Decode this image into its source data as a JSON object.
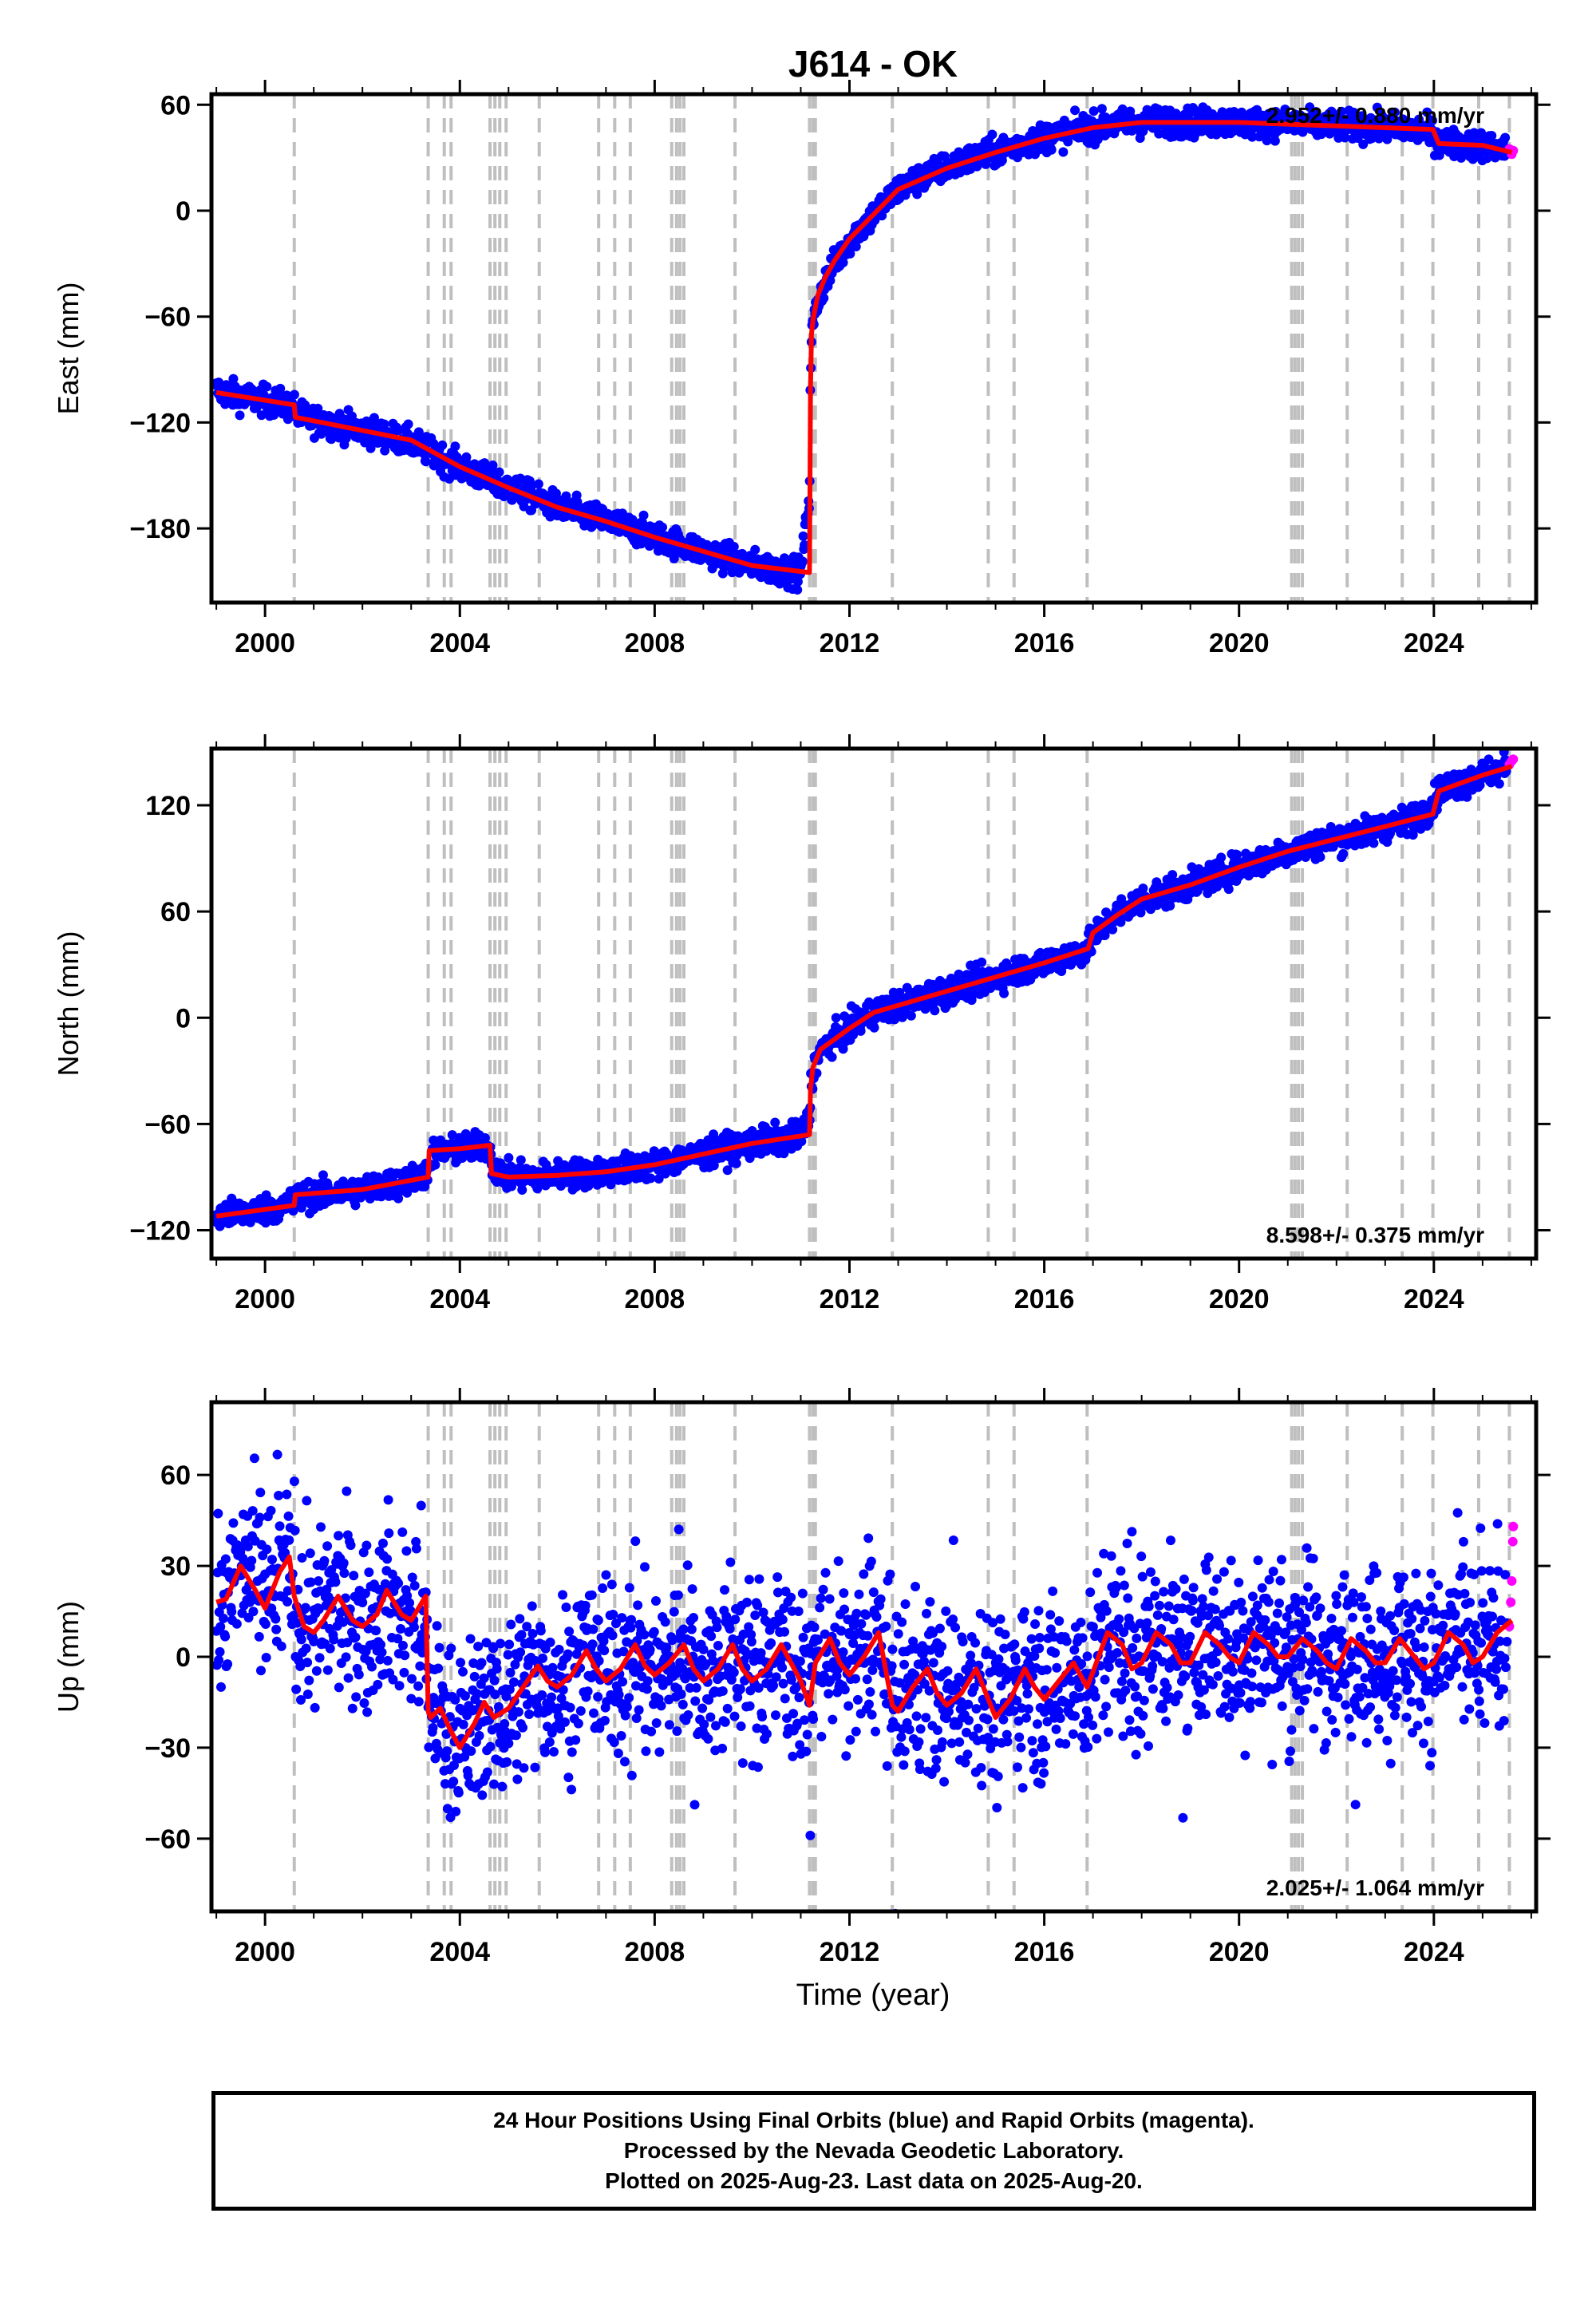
{
  "colors": {
    "final_orbits": "#0000ff",
    "rapid_orbits": "#ff00ff",
    "model": "#ff0000",
    "event_lines": "#bfbfbf",
    "frame": "#000000"
  },
  "footer": {
    "line1": "24 Hour Positions Using Final Orbits (blue) and Rapid Orbits (magenta).",
    "line2": "Processed by the Nevada Geodetic Laboratory.",
    "line3": "Plotted on 2025-Aug-23. Last data on 2025-Aug-20."
  },
  "chart_data": {
    "type": "scatter",
    "title": "J614 - OK",
    "xlabel": "Time (year)",
    "x_ticks": [
      "2000",
      "2004",
      "2008",
      "2012",
      "2016",
      "2020",
      "2024"
    ],
    "x_tick_values": [
      2000,
      2004,
      2008,
      2012,
      2016,
      2020,
      2024
    ],
    "xlim": [
      1998.9,
      2026.1
    ],
    "event_years": [
      2000.6,
      2003.35,
      2003.68,
      2003.82,
      2004.62,
      2004.72,
      2004.82,
      2004.95,
      2005.63,
      2006.85,
      2007.18,
      2007.5,
      2008.35,
      2008.45,
      2008.52,
      2008.6,
      2009.65,
      2011.18,
      2011.25,
      2011.3,
      2012.88,
      2014.85,
      2015.38,
      2016.88,
      2021.08,
      2021.15,
      2021.22,
      2021.3,
      2022.22,
      2023.35,
      2023.98,
      2024.92,
      2025.55
    ],
    "panels": [
      {
        "name": "East",
        "ylabel": "East (mm)",
        "y_ticks": [
          "60",
          "0",
          "−60",
          "−120",
          "−180"
        ],
        "y_tick_values": [
          60,
          0,
          -60,
          -120,
          -180
        ],
        "ylim": [
          -222,
          66
        ],
        "rate_text": "2.952+/- 0.880 mm/yr",
        "rate_position": "top-right",
        "model": {
          "x": [
            1999.0,
            2000.6,
            2000.62,
            2003.0,
            2004.0,
            2005.0,
            2006.0,
            2007.0,
            2008.0,
            2009.0,
            2010.0,
            2011.18,
            2011.2,
            2011.22,
            2011.25,
            2011.35,
            2011.5,
            2011.7,
            2012.0,
            2012.5,
            2013.0,
            2014.0,
            2015.0,
            2016.0,
            2017.0,
            2018.0,
            2019.0,
            2020.0,
            2021.0,
            2022.0,
            2023.0,
            2023.98,
            2024.1,
            2025.0,
            2025.6
          ],
          "y": [
            -103,
            -110,
            -117,
            -130,
            -145,
            -157,
            -168,
            -176,
            -185,
            -193,
            -201,
            -205,
            -100,
            -70,
            -62,
            -48,
            -38,
            -28,
            -16,
            -2,
            12,
            24,
            33,
            41,
            47,
            50,
            50,
            50,
            49,
            48,
            47,
            46,
            38,
            37,
            33
          ]
        },
        "final_points": {
          "x": [
            1999.0,
            1999.5,
            2000.0,
            2000.5,
            2001.0,
            2001.5,
            2002.0,
            2002.5,
            2003.0,
            2003.5,
            2004.0,
            2004.5,
            2005.0,
            2005.5,
            2006.0,
            2006.5,
            2007.0,
            2007.5,
            2008.0,
            2008.5,
            2009.0,
            2009.5,
            2010.0,
            2010.5,
            2011.0,
            2011.2,
            2011.3,
            2011.5,
            2012.0,
            2012.5,
            2013.0,
            2013.5,
            2014.0,
            2014.5,
            2015.0,
            2015.5,
            2016.0,
            2016.5,
            2017.0,
            2017.5,
            2018.0,
            2018.5,
            2019.0,
            2019.5,
            2020.0,
            2020.5,
            2021.0,
            2021.5,
            2022.0,
            2022.5,
            2023.0,
            2023.5,
            2024.0,
            2024.5,
            2025.0,
            2025.5
          ],
          "y": [
            -100,
            -106,
            -108,
            -112,
            -118,
            -121,
            -124,
            -128,
            -133,
            -140,
            -145,
            -152,
            -157,
            -162,
            -167,
            -172,
            -175,
            -180,
            -184,
            -188,
            -193,
            -197,
            -200,
            -204,
            -206,
            -80,
            -62,
            -43,
            -18,
            -3,
            12,
            20,
            26,
            30,
            34,
            38,
            42,
            45,
            48,
            50,
            50,
            51,
            50,
            51,
            50,
            49,
            50,
            49,
            49,
            48,
            47,
            47,
            40,
            38,
            37,
            34
          ],
          "spread": 4
        },
        "rapid_points": {
          "x": [
            2025.55,
            2025.6,
            2025.63
          ],
          "y": [
            35,
            32,
            34
          ]
        }
      },
      {
        "name": "North",
        "ylabel": "North (mm)",
        "y_ticks": [
          "120",
          "60",
          "0",
          "−60",
          "−120"
        ],
        "y_tick_values": [
          120,
          60,
          0,
          -60,
          -120
        ],
        "ylim": [
          -136,
          152
        ],
        "rate_text": "8.598+/- 0.375 mm/yr",
        "rate_position": "bottom-right",
        "model": {
          "x": [
            1999.0,
            2000.6,
            2000.62,
            2002.0,
            2003.35,
            2003.37,
            2004.0,
            2004.62,
            2004.65,
            2005.0,
            2006.0,
            2007.0,
            2008.0,
            2009.0,
            2010.0,
            2011.18,
            2011.2,
            2011.25,
            2011.4,
            2011.7,
            2012.0,
            2012.5,
            2013.0,
            2014.0,
            2015.0,
            2016.0,
            2016.9,
            2017.0,
            2017.5,
            2018.0,
            2019.0,
            2020.0,
            2021.0,
            2022.0,
            2023.0,
            2023.98,
            2024.1,
            2025.0,
            2025.6
          ],
          "y": [
            -112,
            -106,
            -100,
            -97,
            -90,
            -75,
            -74,
            -72,
            -88,
            -90,
            -89,
            -87,
            -83,
            -77,
            -71,
            -66,
            -40,
            -28,
            -18,
            -12,
            -6,
            3,
            7,
            15,
            23,
            31,
            39,
            48,
            58,
            67,
            75,
            85,
            94,
            101,
            108,
            115,
            128,
            137,
            142
          ],
          "spread": 0
        },
        "final_points": {
          "x": [
            1999.0,
            1999.5,
            2000.0,
            2000.5,
            2001.0,
            2001.5,
            2002.0,
            2002.5,
            2003.0,
            2003.5,
            2004.0,
            2004.5,
            2005.0,
            2005.5,
            2006.0,
            2006.5,
            2007.0,
            2007.5,
            2008.0,
            2008.5,
            2009.0,
            2009.5,
            2010.0,
            2010.5,
            2011.0,
            2011.3,
            2011.5,
            2012.0,
            2012.5,
            2013.0,
            2013.5,
            2014.0,
            2014.5,
            2015.0,
            2015.5,
            2016.0,
            2016.5,
            2017.0,
            2017.5,
            2018.0,
            2018.5,
            2019.0,
            2019.5,
            2020.0,
            2020.5,
            2021.0,
            2021.5,
            2022.0,
            2022.5,
            2023.0,
            2023.5,
            2024.0,
            2024.5,
            2025.0,
            2025.5
          ],
          "y": [
            -112,
            -110,
            -108,
            -104,
            -102,
            -100,
            -97,
            -95,
            -92,
            -78,
            -75,
            -72,
            -89,
            -90,
            -89,
            -88,
            -87,
            -85,
            -83,
            -80,
            -77,
            -74,
            -71,
            -69,
            -67,
            -26,
            -16,
            -6,
            3,
            7,
            11,
            15,
            19,
            23,
            27,
            31,
            35,
            41,
            60,
            66,
            70,
            75,
            80,
            85,
            89,
            94,
            98,
            101,
            104,
            108,
            111,
            128,
            133,
            137,
            141
          ],
          "spread": 4
        },
        "rapid_points": {
          "x": [
            2025.55,
            2025.6,
            2025.63
          ],
          "y": [
            143,
            145,
            146
          ]
        }
      },
      {
        "name": "Up",
        "ylabel": "Up (mm)",
        "y_ticks": [
          "60",
          "30",
          "0",
          "−30",
          "−60"
        ],
        "y_tick_values": [
          60,
          30,
          0,
          -30,
          -60
        ],
        "ylim": [
          -84,
          84
        ],
        "rate_text": "2.025+/- 1.064 mm/yr",
        "rate_position": "bottom-right",
        "model": {
          "x": [
            1999.0,
            1999.2,
            1999.5,
            1999.8,
            2000.0,
            2000.3,
            2000.5,
            2000.6,
            2000.8,
            2001.0,
            2001.2,
            2001.5,
            2001.8,
            2002.0,
            2002.3,
            2002.5,
            2002.8,
            2003.0,
            2003.3,
            2003.35,
            2003.4,
            2003.6,
            2003.8,
            2004.0,
            2004.3,
            2004.5,
            2004.7,
            2005.0,
            2005.3,
            2005.6,
            2005.8,
            2006.0,
            2006.3,
            2006.6,
            2006.8,
            2007.0,
            2007.3,
            2007.6,
            2007.8,
            2008.0,
            2008.3,
            2008.6,
            2008.8,
            2009.0,
            2009.3,
            2009.6,
            2009.8,
            2010.0,
            2010.3,
            2010.6,
            2010.8,
            2011.0,
            2011.18,
            2011.3,
            2011.6,
            2011.8,
            2012.0,
            2012.3,
            2012.6,
            2012.88,
            2013.0,
            2013.3,
            2013.6,
            2013.8,
            2014.0,
            2014.3,
            2014.6,
            2014.8,
            2015.0,
            2015.3,
            2015.6,
            2015.8,
            2016.0,
            2016.3,
            2016.6,
            2016.88,
            2017.0,
            2017.3,
            2017.6,
            2017.8,
            2018.0,
            2018.3,
            2018.6,
            2018.8,
            2019.0,
            2019.3,
            2019.6,
            2019.8,
            2020.0,
            2020.3,
            2020.6,
            2020.8,
            2021.0,
            2021.3,
            2021.6,
            2021.8,
            2022.0,
            2022.3,
            2022.6,
            2022.8,
            2023.0,
            2023.3,
            2023.6,
            2023.8,
            2024.0,
            2024.3,
            2024.6,
            2024.8,
            2025.0,
            2025.3,
            2025.6
          ],
          "y": [
            18,
            19,
            30,
            22,
            16,
            28,
            33,
            20,
            10,
            8,
            12,
            20,
            12,
            10,
            14,
            22,
            14,
            12,
            20,
            -18,
            -20,
            -17,
            -24,
            -30,
            -22,
            -15,
            -20,
            -17,
            -10,
            -3,
            -8,
            -10,
            -6,
            2,
            -4,
            -8,
            -4,
            4,
            -3,
            -6,
            -2,
            4,
            -4,
            -8,
            -4,
            4,
            -4,
            -8,
            -4,
            4,
            -2,
            -8,
            -16,
            -2,
            6,
            -2,
            -6,
            0,
            8,
            -16,
            -18,
            -10,
            -4,
            -12,
            -16,
            -12,
            -4,
            -12,
            -20,
            -14,
            -4,
            -10,
            -14,
            -8,
            -2,
            -10,
            -5,
            8,
            4,
            -4,
            -2,
            8,
            4,
            -2,
            -2,
            8,
            4,
            0,
            -2,
            8,
            4,
            0,
            0,
            6,
            2,
            -2,
            -4,
            6,
            2,
            -2,
            -2,
            6,
            0,
            -4,
            -2,
            8,
            4,
            -2,
            0,
            8,
            12
          ],
          "spread": 0
        },
        "final_points": {
          "x": [
            1999.0,
            1999.5,
            2000.0,
            2000.5,
            2001.0,
            2001.5,
            2002.0,
            2002.5,
            2003.0,
            2003.5,
            2004.0,
            2004.5,
            2005.0,
            2005.5,
            2006.0,
            2006.5,
            2007.0,
            2007.5,
            2008.0,
            2008.5,
            2009.0,
            2009.5,
            2010.0,
            2010.5,
            2011.0,
            2011.5,
            2012.0,
            2012.5,
            2013.0,
            2013.5,
            2014.0,
            2014.5,
            2015.0,
            2015.5,
            2016.0,
            2016.5,
            2017.0,
            2017.5,
            2018.0,
            2018.5,
            2019.0,
            2019.5,
            2020.0,
            2020.5,
            2021.0,
            2021.5,
            2022.0,
            2022.5,
            2023.0,
            2023.5,
            2024.0,
            2024.5,
            2025.0,
            2025.5
          ],
          "y": [
            22,
            28,
            20,
            26,
            12,
            16,
            12,
            18,
            14,
            -22,
            -26,
            -18,
            -20,
            -6,
            -8,
            -2,
            -6,
            -2,
            -4,
            0,
            -6,
            0,
            -4,
            0,
            -8,
            2,
            -2,
            4,
            -14,
            -8,
            -14,
            -6,
            -16,
            -6,
            -12,
            -4,
            -6,
            6,
            2,
            4,
            2,
            6,
            4,
            6,
            2,
            4,
            0,
            4,
            2,
            4,
            0,
            4,
            2,
            8
          ],
          "spread": 14
        },
        "rapid_points": {
          "x": [
            2025.55,
            2025.58,
            2025.6,
            2025.62,
            2025.63
          ],
          "y": [
            10,
            18,
            25,
            38,
            43
          ]
        }
      }
    ]
  }
}
